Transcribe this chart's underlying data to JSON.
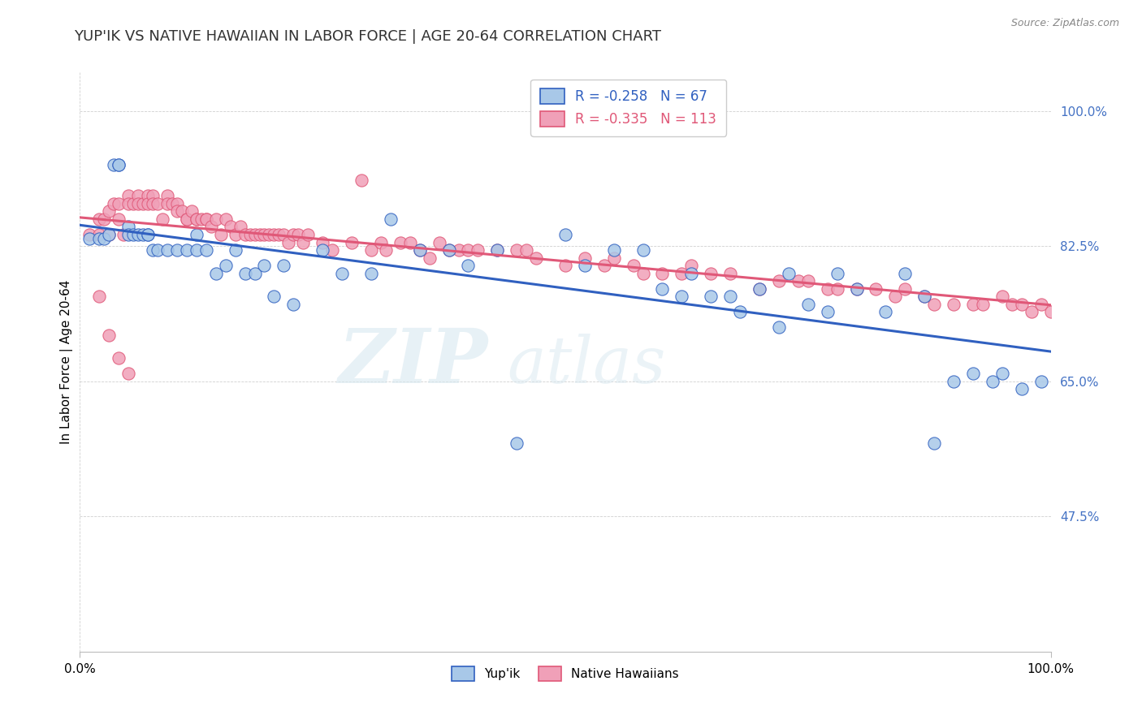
{
  "title": "YUP'IK VS NATIVE HAWAIIAN IN LABOR FORCE | AGE 20-64 CORRELATION CHART",
  "source": "Source: ZipAtlas.com",
  "ylabel": "In Labor Force | Age 20-64",
  "x_min": 0.0,
  "x_max": 1.0,
  "y_min": 0.3,
  "y_max": 1.05,
  "yticks": [
    0.475,
    0.65,
    0.825,
    1.0
  ],
  "ytick_labels": [
    "47.5%",
    "65.0%",
    "82.5%",
    "100.0%"
  ],
  "xticks": [
    0.0,
    1.0
  ],
  "xtick_labels": [
    "0.0%",
    "100.0%"
  ],
  "legend_label1": "Yup'ik",
  "legend_label2": "Native Hawaiians",
  "r1": -0.258,
  "n1": 67,
  "r2": -0.335,
  "n2": 113,
  "color_blue": "#a8c8e8",
  "color_pink": "#f0a0b8",
  "color_blue_line": "#3060c0",
  "color_pink_line": "#e05878",
  "watermark_zip": "ZIP",
  "watermark_atlas": "atlas",
  "yupik_x": [
    0.01,
    0.02,
    0.025,
    0.03,
    0.035,
    0.04,
    0.04,
    0.05,
    0.05,
    0.055,
    0.06,
    0.065,
    0.07,
    0.07,
    0.075,
    0.08,
    0.09,
    0.1,
    0.11,
    0.12,
    0.12,
    0.13,
    0.14,
    0.15,
    0.16,
    0.17,
    0.18,
    0.19,
    0.2,
    0.21,
    0.22,
    0.25,
    0.27,
    0.3,
    0.32,
    0.35,
    0.38,
    0.4,
    0.43,
    0.45,
    0.5,
    0.52,
    0.55,
    0.58,
    0.6,
    0.62,
    0.63,
    0.65,
    0.67,
    0.68,
    0.7,
    0.72,
    0.73,
    0.75,
    0.77,
    0.78,
    0.8,
    0.83,
    0.85,
    0.87,
    0.88,
    0.9,
    0.92,
    0.94,
    0.95,
    0.97,
    0.99
  ],
  "yupik_y": [
    0.835,
    0.835,
    0.835,
    0.84,
    0.93,
    0.93,
    0.93,
    0.85,
    0.84,
    0.84,
    0.84,
    0.84,
    0.84,
    0.84,
    0.82,
    0.82,
    0.82,
    0.82,
    0.82,
    0.84,
    0.82,
    0.82,
    0.79,
    0.8,
    0.82,
    0.79,
    0.79,
    0.8,
    0.76,
    0.8,
    0.75,
    0.82,
    0.79,
    0.79,
    0.86,
    0.82,
    0.82,
    0.8,
    0.82,
    0.57,
    0.84,
    0.8,
    0.82,
    0.82,
    0.77,
    0.76,
    0.79,
    0.76,
    0.76,
    0.74,
    0.77,
    0.72,
    0.79,
    0.75,
    0.74,
    0.79,
    0.77,
    0.74,
    0.79,
    0.76,
    0.57,
    0.65,
    0.66,
    0.65,
    0.66,
    0.64,
    0.65
  ],
  "nhawaiian_x": [
    0.01,
    0.02,
    0.02,
    0.025,
    0.03,
    0.03,
    0.035,
    0.04,
    0.04,
    0.045,
    0.05,
    0.05,
    0.055,
    0.06,
    0.06,
    0.065,
    0.07,
    0.07,
    0.075,
    0.075,
    0.08,
    0.085,
    0.09,
    0.09,
    0.095,
    0.1,
    0.1,
    0.105,
    0.11,
    0.11,
    0.115,
    0.12,
    0.12,
    0.125,
    0.13,
    0.13,
    0.135,
    0.14,
    0.145,
    0.15,
    0.155,
    0.16,
    0.165,
    0.17,
    0.175,
    0.18,
    0.185,
    0.19,
    0.195,
    0.2,
    0.205,
    0.21,
    0.215,
    0.22,
    0.225,
    0.23,
    0.235,
    0.25,
    0.26,
    0.28,
    0.29,
    0.3,
    0.31,
    0.315,
    0.33,
    0.34,
    0.35,
    0.36,
    0.37,
    0.38,
    0.39,
    0.4,
    0.41,
    0.43,
    0.45,
    0.46,
    0.47,
    0.5,
    0.52,
    0.54,
    0.55,
    0.57,
    0.58,
    0.6,
    0.62,
    0.63,
    0.65,
    0.67,
    0.7,
    0.72,
    0.74,
    0.75,
    0.77,
    0.78,
    0.8,
    0.82,
    0.84,
    0.85,
    0.87,
    0.88,
    0.9,
    0.92,
    0.93,
    0.95,
    0.96,
    0.97,
    0.98,
    0.99,
    1.0,
    0.02,
    0.03,
    0.04,
    0.05
  ],
  "nhawaiian_y": [
    0.84,
    0.86,
    0.84,
    0.86,
    0.87,
    0.84,
    0.88,
    0.88,
    0.86,
    0.84,
    0.89,
    0.88,
    0.88,
    0.89,
    0.88,
    0.88,
    0.89,
    0.88,
    0.89,
    0.88,
    0.88,
    0.86,
    0.89,
    0.88,
    0.88,
    0.88,
    0.87,
    0.87,
    0.86,
    0.86,
    0.87,
    0.86,
    0.86,
    0.86,
    0.86,
    0.86,
    0.85,
    0.86,
    0.84,
    0.86,
    0.85,
    0.84,
    0.85,
    0.84,
    0.84,
    0.84,
    0.84,
    0.84,
    0.84,
    0.84,
    0.84,
    0.84,
    0.83,
    0.84,
    0.84,
    0.83,
    0.84,
    0.83,
    0.82,
    0.83,
    0.91,
    0.82,
    0.83,
    0.82,
    0.83,
    0.83,
    0.82,
    0.81,
    0.83,
    0.82,
    0.82,
    0.82,
    0.82,
    0.82,
    0.82,
    0.82,
    0.81,
    0.8,
    0.81,
    0.8,
    0.81,
    0.8,
    0.79,
    0.79,
    0.79,
    0.8,
    0.79,
    0.79,
    0.77,
    0.78,
    0.78,
    0.78,
    0.77,
    0.77,
    0.77,
    0.77,
    0.76,
    0.77,
    0.76,
    0.75,
    0.75,
    0.75,
    0.75,
    0.76,
    0.75,
    0.75,
    0.74,
    0.75,
    0.74,
    0.76,
    0.71,
    0.68,
    0.66
  ]
}
